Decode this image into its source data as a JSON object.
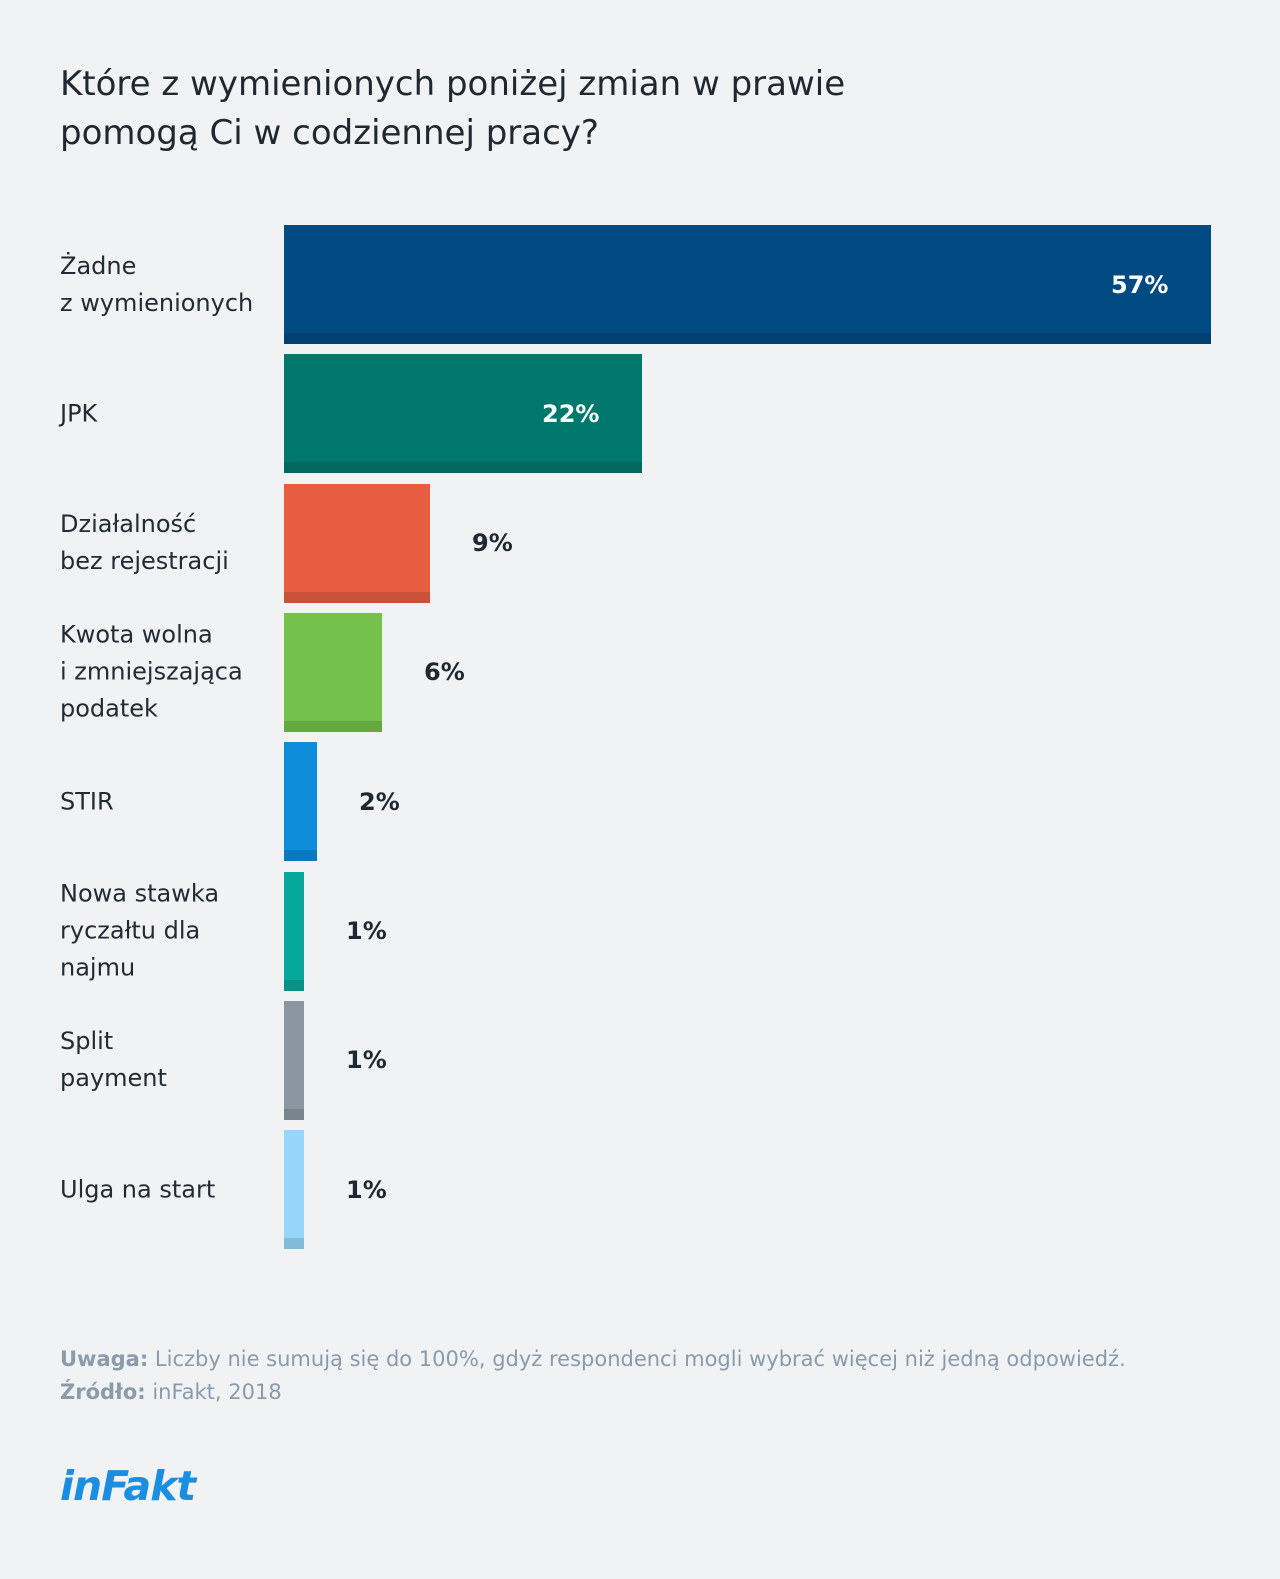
{
  "chart_data": {
    "type": "bar",
    "orientation": "horizontal",
    "title": "Które z wymienionych poniżej zmian w prawie pomogą Ci w codziennej pracy?",
    "title_lines": [
      "Które z wymienionych poniżej zmian w prawie",
      "pomogą Ci w codziennej pracy?"
    ],
    "categories": [
      "Żadne\nz wymienionych",
      "JPK",
      "Działalność\nbez rejestracji",
      "Kwota wolna\ni zmniejszająca\npodatek",
      "STIR",
      "Nowa stawka\nryczałtu dla\nnajmu",
      "Split\npayment",
      "Ulga na start"
    ],
    "values": [
      57,
      22,
      9,
      6,
      2,
      1,
      1,
      1
    ],
    "value_labels": [
      "57%",
      "22%",
      "9%",
      "6%",
      "2%",
      "1%",
      "1%",
      "1%"
    ],
    "colors": [
      "#024a82",
      "#00786b",
      "#e85d42",
      "#74c24c",
      "#0d8cd9",
      "#07a89c",
      "#8a97a3",
      "#96d6fb"
    ],
    "xlim": [
      0,
      57
    ],
    "grid": false
  },
  "footer": {
    "note_label": "Uwaga:",
    "note_text": " Liczby nie sumują się do 100%, gdyż respondenci mogli wybrać więcej niż jedną odpowiedź.",
    "source_label": "Źródło:",
    "source_text": " inFakt, 2018"
  },
  "logo": {
    "text": "inFakt",
    "color": "#1a8ee0"
  }
}
